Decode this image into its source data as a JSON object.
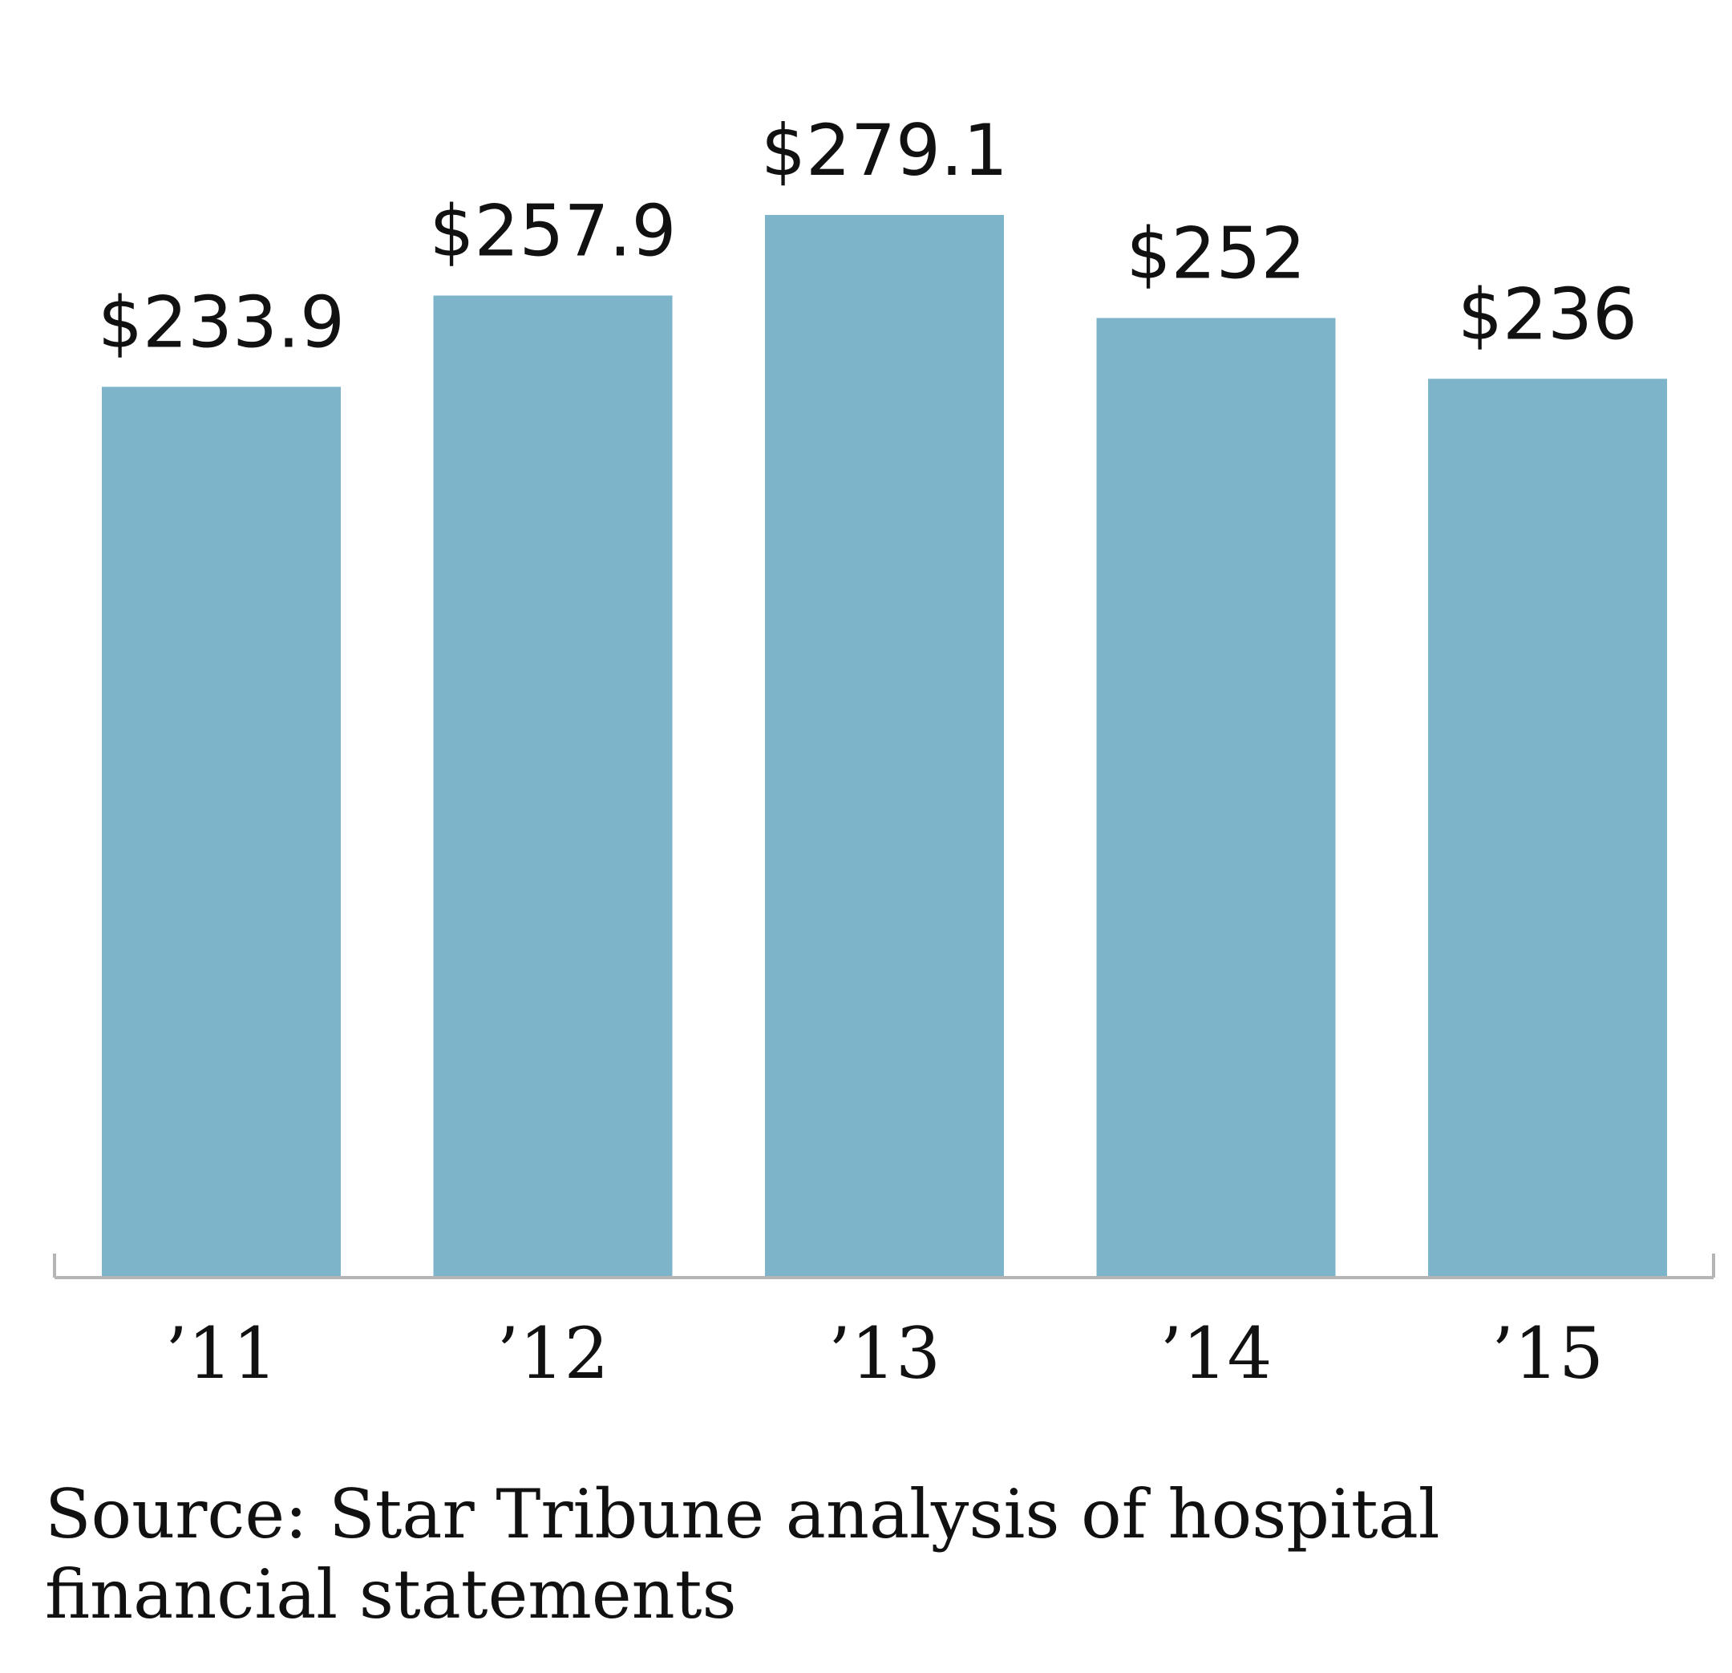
{
  "chart_data": {
    "type": "bar",
    "categories": [
      "’11",
      "’12",
      "’13",
      "’14",
      "’15"
    ],
    "values": [
      233.9,
      257.9,
      279.1,
      252,
      236
    ],
    "value_labels": [
      "$233.9",
      "$257.9",
      "$279.1",
      "$252",
      "$236"
    ],
    "title": "",
    "xlabel": "",
    "ylabel": "",
    "ylim": [
      0,
      279.1
    ],
    "grid": false,
    "legend": "none",
    "bar_color": "#7db4c9"
  },
  "source": "Source: Star Tribune analysis of hospital financial statements"
}
